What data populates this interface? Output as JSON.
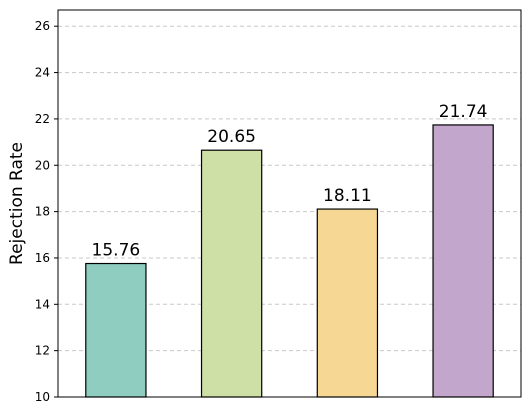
{
  "chart_data": {
    "type": "bar",
    "categories": [
      "",
      "",
      "",
      ""
    ],
    "values": [
      15.76,
      20.65,
      18.11,
      21.74
    ],
    "data_labels": [
      "15.76",
      "20.65",
      "18.11",
      "21.74"
    ],
    "colors": [
      "#8ecdbf",
      "#cfe0a6",
      "#f7d794",
      "#c3a6cc"
    ],
    "title": "",
    "xlabel": "",
    "ylabel": "Rejection Rate",
    "ylim": [
      10,
      26.7
    ],
    "yticks": [
      10,
      12,
      14,
      16,
      18,
      20,
      22,
      24,
      26
    ],
    "ytick_labels": [
      "10",
      "12",
      "14",
      "16",
      "18",
      "20",
      "22",
      "24",
      "26"
    ],
    "grid": "y-dashed",
    "grid_color": "#c8c8c8",
    "legend": "none"
  }
}
